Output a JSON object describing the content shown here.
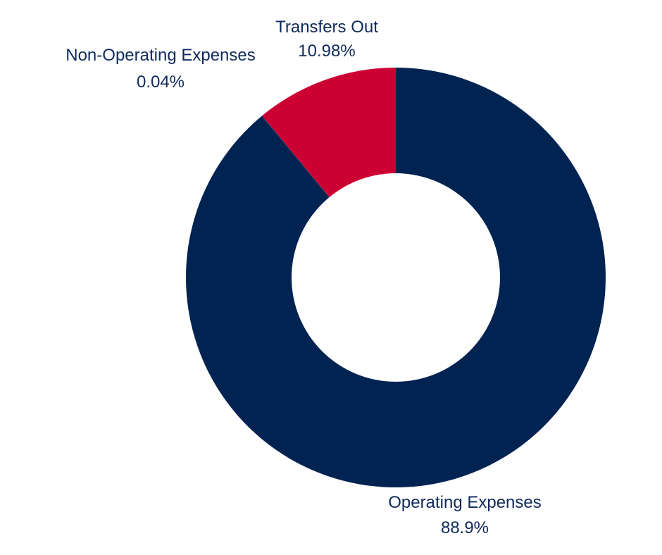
{
  "chart_data": {
    "type": "pie",
    "donut": true,
    "slices": [
      {
        "label": "Operating Expenses",
        "value": 88.9,
        "value_label": "88.9%",
        "color": "#002352"
      },
      {
        "label": "Non-Operating Expenses",
        "value": 0.04,
        "value_label": "0.04%",
        "color": "#002352"
      },
      {
        "label": "Transfers Out",
        "value": 10.98,
        "value_label": "10.98%",
        "color": "#cc0033"
      }
    ],
    "start_angle_deg": 0,
    "direction": "clockwise",
    "title": "",
    "legend": "none"
  }
}
